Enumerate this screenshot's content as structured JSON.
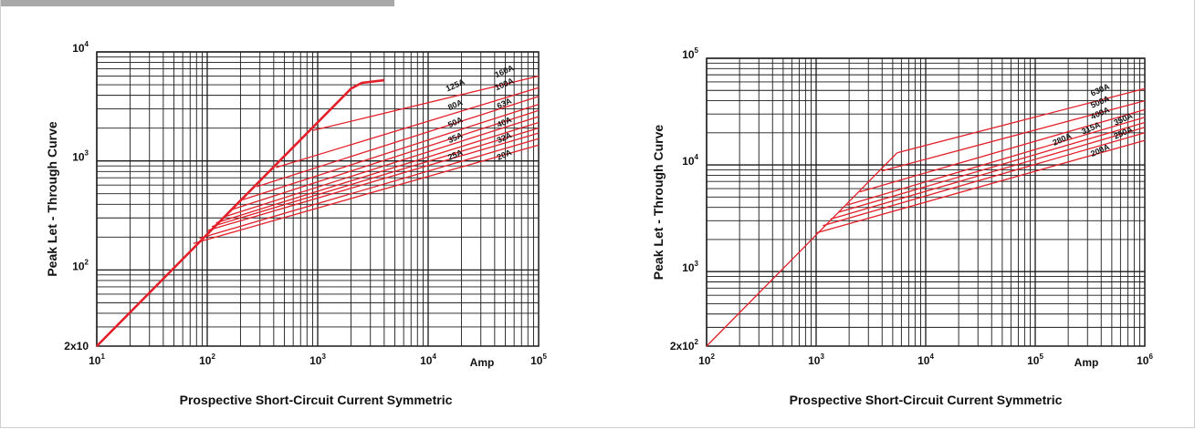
{
  "colors": {
    "curve": "#e3202a",
    "grid": "#1a1a1a",
    "frame": "#cfcfcf",
    "bar": "#a8a8a8"
  },
  "chart_data": [
    {
      "type": "line",
      "x_scale": "log",
      "y_scale": "log",
      "xlim": [
        10,
        100000
      ],
      "ylim": [
        20,
        10000
      ],
      "grid": true,
      "ylabel": "Peak Let - Through Curve",
      "xlabel": "Prospective Short-Circuit Current Symmetric",
      "x_unit": "Amp",
      "x_ticks": [
        {
          "base": "10",
          "exp": "1",
          "value": 10
        },
        {
          "base": "10",
          "exp": "2",
          "value": 100
        },
        {
          "base": "10",
          "exp": "3",
          "value": 1000
        },
        {
          "base": "10",
          "exp": "4",
          "value": 10000
        },
        {
          "base": "10",
          "exp": "5",
          "value": 100000
        }
      ],
      "y_ticks": [
        {
          "base": "2x10",
          "exp": "",
          "value": 20
        },
        {
          "base": "10",
          "exp": "2",
          "value": 100
        },
        {
          "base": "10",
          "exp": "3",
          "value": 1000
        },
        {
          "base": "10",
          "exp": "4",
          "value": 10000
        }
      ],
      "envelope": {
        "x": [
          10,
          2000,
          2500,
          4000
        ],
        "y": [
          20,
          4600,
          5200,
          5500
        ]
      },
      "series": [
        {
          "label": "20A",
          "x": [
            75,
            100000
          ],
          "y": [
            175,
            1400
          ]
        },
        {
          "label": "25A",
          "x": [
            85,
            100000
          ],
          "y": [
            195,
            1600
          ]
        },
        {
          "label": "32A",
          "x": [
            100,
            100000
          ],
          "y": [
            230,
            1800
          ]
        },
        {
          "label": "35A",
          "x": [
            110,
            100000
          ],
          "y": [
            250,
            2000
          ]
        },
        {
          "label": "40A",
          "x": [
            120,
            100000
          ],
          "y": [
            270,
            2250
          ]
        },
        {
          "label": "50A",
          "x": [
            140,
            100000
          ],
          "y": [
            305,
            2550
          ]
        },
        {
          "label": "63A",
          "x": [
            170,
            100000
          ],
          "y": [
            360,
            2900
          ]
        },
        {
          "label": "80A",
          "x": [
            210,
            100000
          ],
          "y": [
            440,
            3300
          ]
        },
        {
          "label": "100A",
          "x": [
            280,
            100000
          ],
          "y": [
            580,
            3900
          ]
        },
        {
          "label": "125A",
          "x": [
            420,
            100000
          ],
          "y": [
            870,
            4700
          ]
        },
        {
          "label": "160A",
          "x": [
            900,
            100000
          ],
          "y": [
            1900,
            6000
          ]
        }
      ],
      "series_labels": [
        {
          "text": "160A",
          "x": 50000,
          "y": 6300
        },
        {
          "text": "125A",
          "x": 18000,
          "y": 4700
        },
        {
          "text": "100A",
          "x": 50000,
          "y": 4800
        },
        {
          "text": "80A",
          "x": 18000,
          "y": 3100
        },
        {
          "text": "63A",
          "x": 50000,
          "y": 3200
        },
        {
          "text": "50A",
          "x": 18000,
          "y": 2150
        },
        {
          "text": "40A",
          "x": 50000,
          "y": 2150
        },
        {
          "text": "35A",
          "x": 18000,
          "y": 1550
        },
        {
          "text": "32A",
          "x": 50000,
          "y": 1550
        },
        {
          "text": "25A",
          "x": 18000,
          "y": 1080
        },
        {
          "text": "20A",
          "x": 50000,
          "y": 1080
        }
      ]
    },
    {
      "type": "line",
      "x_scale": "log",
      "y_scale": "log",
      "xlim": [
        100,
        1000000
      ],
      "ylim": [
        200,
        100000
      ],
      "grid": true,
      "ylabel": "Peak Let - Through Curve",
      "xlabel": "Prospective Short-Circuit Current Symmetric",
      "x_unit": "Amp",
      "x_ticks": [
        {
          "base": "10",
          "exp": "2",
          "value": 100
        },
        {
          "base": "10",
          "exp": "3",
          "value": 1000
        },
        {
          "base": "10",
          "exp": "4",
          "value": 10000
        },
        {
          "base": "10",
          "exp": "5",
          "value": 100000
        },
        {
          "base": "10",
          "exp": "6",
          "value": 1000000
        }
      ],
      "y_ticks": [
        {
          "base": "2x10",
          "exp": "2",
          "value": 200
        },
        {
          "base": "10",
          "exp": "3",
          "value": 1000
        },
        {
          "base": "10",
          "exp": "4",
          "value": 10000
        },
        {
          "base": "10",
          "exp": "5",
          "value": 100000
        }
      ],
      "envelope": {
        "x": [
          100,
          5500
        ],
        "y": [
          200,
          13000
        ]
      },
      "series": [
        {
          "label": "200A",
          "x": [
            1000,
            1000000
          ],
          "y": [
            2300,
            17000
          ]
        },
        {
          "label": "250A",
          "x": [
            1150,
            1000000
          ],
          "y": [
            2700,
            20000
          ]
        },
        {
          "label": "280A",
          "x": [
            1350,
            1000000
          ],
          "y": [
            3100,
            22500
          ]
        },
        {
          "label": "315A",
          "x": [
            1600,
            1000000
          ],
          "y": [
            3600,
            25000
          ]
        },
        {
          "label": "350A",
          "x": [
            1900,
            1000000
          ],
          "y": [
            4200,
            28000
          ]
        },
        {
          "label": "400A",
          "x": [
            2500,
            1000000
          ],
          "y": [
            5600,
            33000
          ]
        },
        {
          "label": "500A",
          "x": [
            4000,
            1000000
          ],
          "y": [
            8800,
            40000
          ]
        },
        {
          "label": "630A",
          "x": [
            5500,
            1000000
          ],
          "y": [
            13000,
            52000
          ]
        }
      ],
      "series_labels": [
        {
          "text": "630A",
          "x": 400000,
          "y": 48000
        },
        {
          "text": "500A",
          "x": 400000,
          "y": 37000
        },
        {
          "text": "400A",
          "x": 400000,
          "y": 29000
        },
        {
          "text": "350A",
          "x": 650000,
          "y": 25500
        },
        {
          "text": "315A",
          "x": 330000,
          "y": 21000
        },
        {
          "text": "280A",
          "x": 180000,
          "y": 16500
        },
        {
          "text": "250A",
          "x": 650000,
          "y": 19000
        },
        {
          "text": "200A",
          "x": 400000,
          "y": 13000
        }
      ]
    }
  ]
}
